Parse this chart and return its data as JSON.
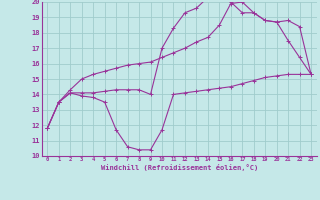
{
  "background_color": "#c5e8e8",
  "grid_color": "#a0cccc",
  "line_color": "#993399",
  "xlim": [
    -0.5,
    23.5
  ],
  "ylim": [
    10,
    20
  ],
  "xlabel": "Windchill (Refroidissement éolien,°C)",
  "yticks": [
    10,
    11,
    12,
    13,
    14,
    15,
    16,
    17,
    18,
    19,
    20
  ],
  "xticks": [
    0,
    1,
    2,
    3,
    4,
    5,
    6,
    7,
    8,
    9,
    10,
    11,
    12,
    13,
    14,
    15,
    16,
    17,
    18,
    19,
    20,
    21,
    22,
    23
  ],
  "line1_x": [
    0,
    1,
    2,
    3,
    4,
    5,
    6,
    7,
    8,
    9,
    10,
    11,
    12,
    13,
    14,
    15,
    16,
    17,
    18,
    19,
    20,
    21,
    22,
    23
  ],
  "line1_y": [
    11.8,
    13.5,
    14.1,
    13.9,
    13.8,
    13.5,
    11.7,
    10.6,
    10.4,
    10.4,
    11.7,
    14.0,
    14.1,
    14.2,
    14.3,
    14.4,
    14.5,
    14.7,
    14.9,
    15.1,
    15.2,
    15.3,
    15.3,
    15.3
  ],
  "line2_x": [
    0,
    1,
    2,
    3,
    4,
    5,
    6,
    7,
    8,
    9,
    10,
    11,
    12,
    13,
    14,
    15,
    16,
    17,
    18,
    19,
    20,
    21,
    22,
    23
  ],
  "line2_y": [
    11.8,
    13.5,
    14.1,
    14.1,
    14.1,
    14.2,
    14.3,
    14.3,
    14.3,
    14.0,
    17.0,
    18.3,
    19.3,
    19.6,
    20.3,
    20.7,
    20.0,
    19.3,
    19.3,
    18.8,
    18.7,
    17.5,
    16.4,
    15.3
  ],
  "line3_x": [
    0,
    1,
    2,
    3,
    4,
    5,
    6,
    7,
    8,
    9,
    10,
    11,
    12,
    13,
    14,
    15,
    16,
    17,
    18,
    19,
    20,
    21,
    22,
    23
  ],
  "line3_y": [
    11.8,
    13.5,
    14.3,
    15.0,
    15.3,
    15.5,
    15.7,
    15.9,
    16.0,
    16.1,
    16.4,
    16.7,
    17.0,
    17.4,
    17.7,
    18.5,
    19.9,
    20.0,
    19.3,
    18.8,
    18.7,
    18.8,
    18.4,
    15.3
  ]
}
